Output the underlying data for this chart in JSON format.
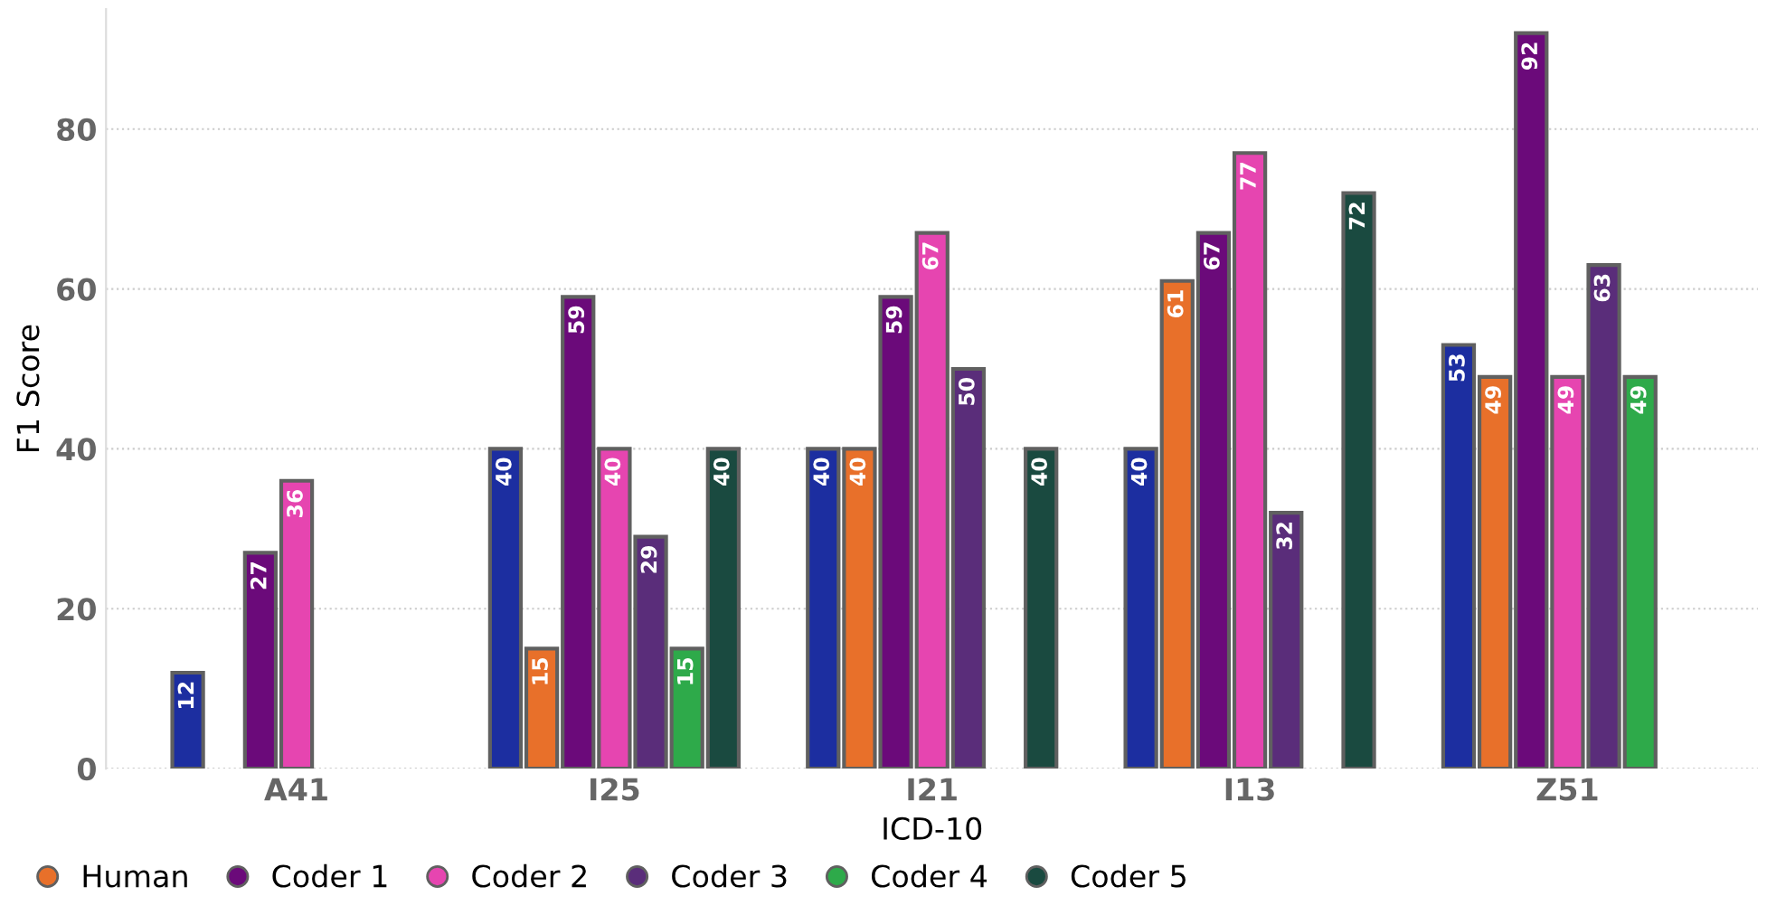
{
  "chart_data": {
    "type": "bar",
    "xlabel": "ICD-10",
    "ylabel": "F1 Score",
    "categories": [
      "A41",
      "I25",
      "I21",
      "I13",
      "Z51"
    ],
    "series": [
      {
        "color": "#1c2ea0",
        "values": [
          12,
          40,
          40,
          40,
          53
        ]
      },
      {
        "name": "Human",
        "color": "#e8702a",
        "values": [
          null,
          15,
          40,
          61,
          49
        ]
      },
      {
        "name": "Coder 1",
        "color": "#6b0a7a",
        "values": [
          27,
          59,
          59,
          67,
          92
        ]
      },
      {
        "name": "Coder 2",
        "color": "#e645b0",
        "values": [
          36,
          40,
          67,
          77,
          49
        ]
      },
      {
        "name": "Coder 3",
        "color": "#5a2d7a",
        "values": [
          null,
          29,
          50,
          32,
          63
        ]
      },
      {
        "name": "Coder 4",
        "color": "#2eaa4a",
        "values": [
          null,
          15,
          null,
          null,
          49
        ]
      },
      {
        "name": "Coder 5",
        "color": "#1a4a40",
        "values": [
          null,
          40,
          40,
          72,
          null
        ]
      }
    ],
    "ylim": [
      0,
      95
    ],
    "yticks": [
      0,
      20,
      40,
      60,
      80
    ],
    "grid": "y",
    "data_labels": true,
    "legend": "bottom left"
  }
}
